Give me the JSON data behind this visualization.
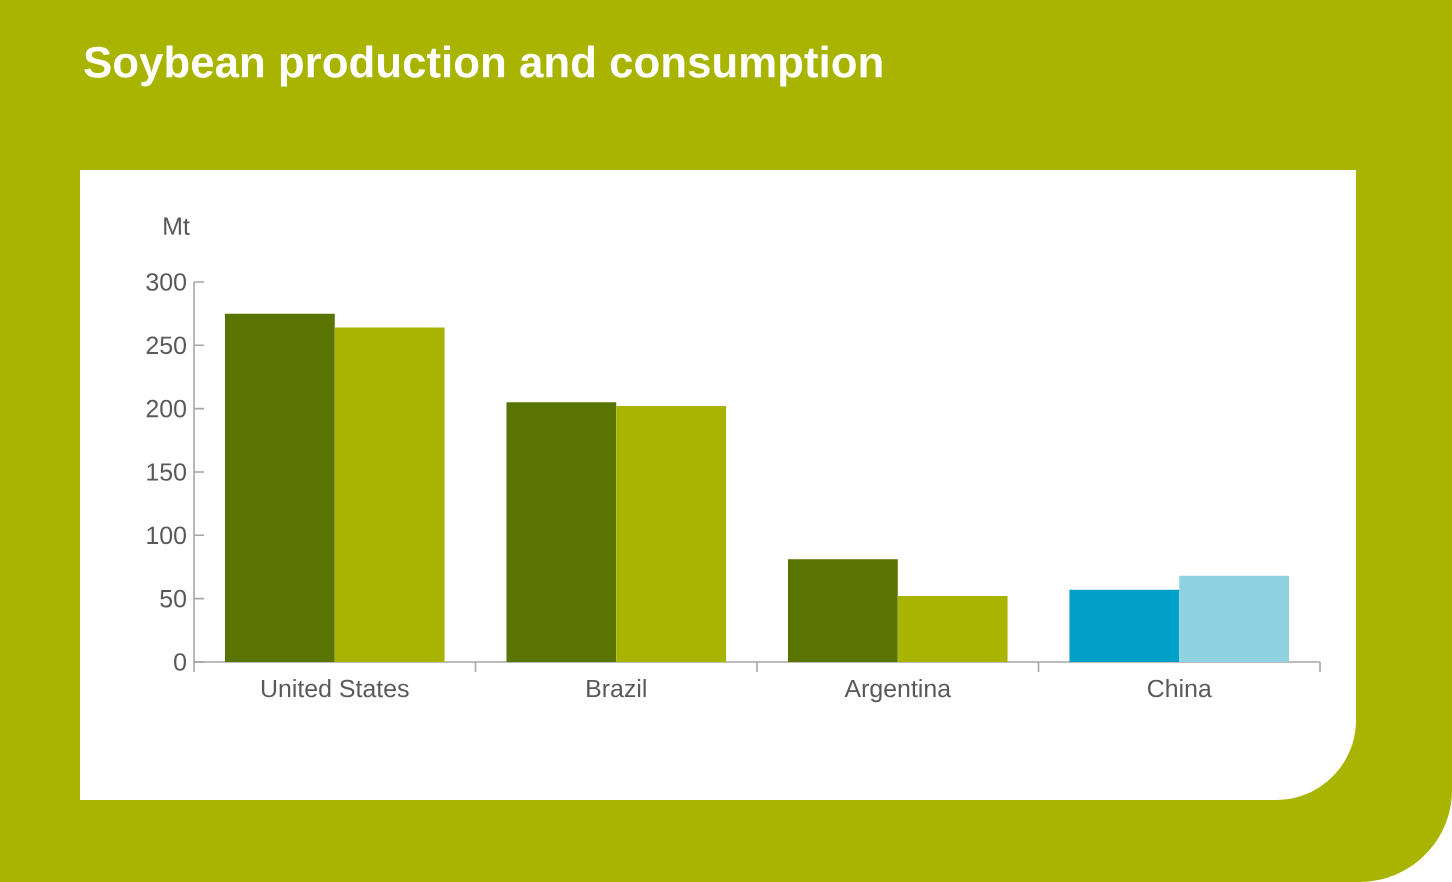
{
  "chart_data": {
    "type": "bar",
    "title": "Soybean production and consumption",
    "ylabel": "Mt",
    "categories": [
      "United States",
      "Brazil",
      "Argentina",
      "China"
    ],
    "series": [
      {
        "colors": [
          "#5a7400",
          "#5a7400",
          "#5a7400",
          "#00a0c8"
        ],
        "values": [
          275,
          205,
          81,
          57
        ]
      },
      {
        "colors": [
          "#a8b400",
          "#a8b400",
          "#a8b400",
          "#8fd3e3"
        ],
        "values": [
          264,
          202,
          52,
          68
        ]
      }
    ],
    "ylim": [
      0,
      300
    ],
    "yticks": [
      0,
      50,
      100,
      150,
      200,
      250,
      300
    ]
  }
}
